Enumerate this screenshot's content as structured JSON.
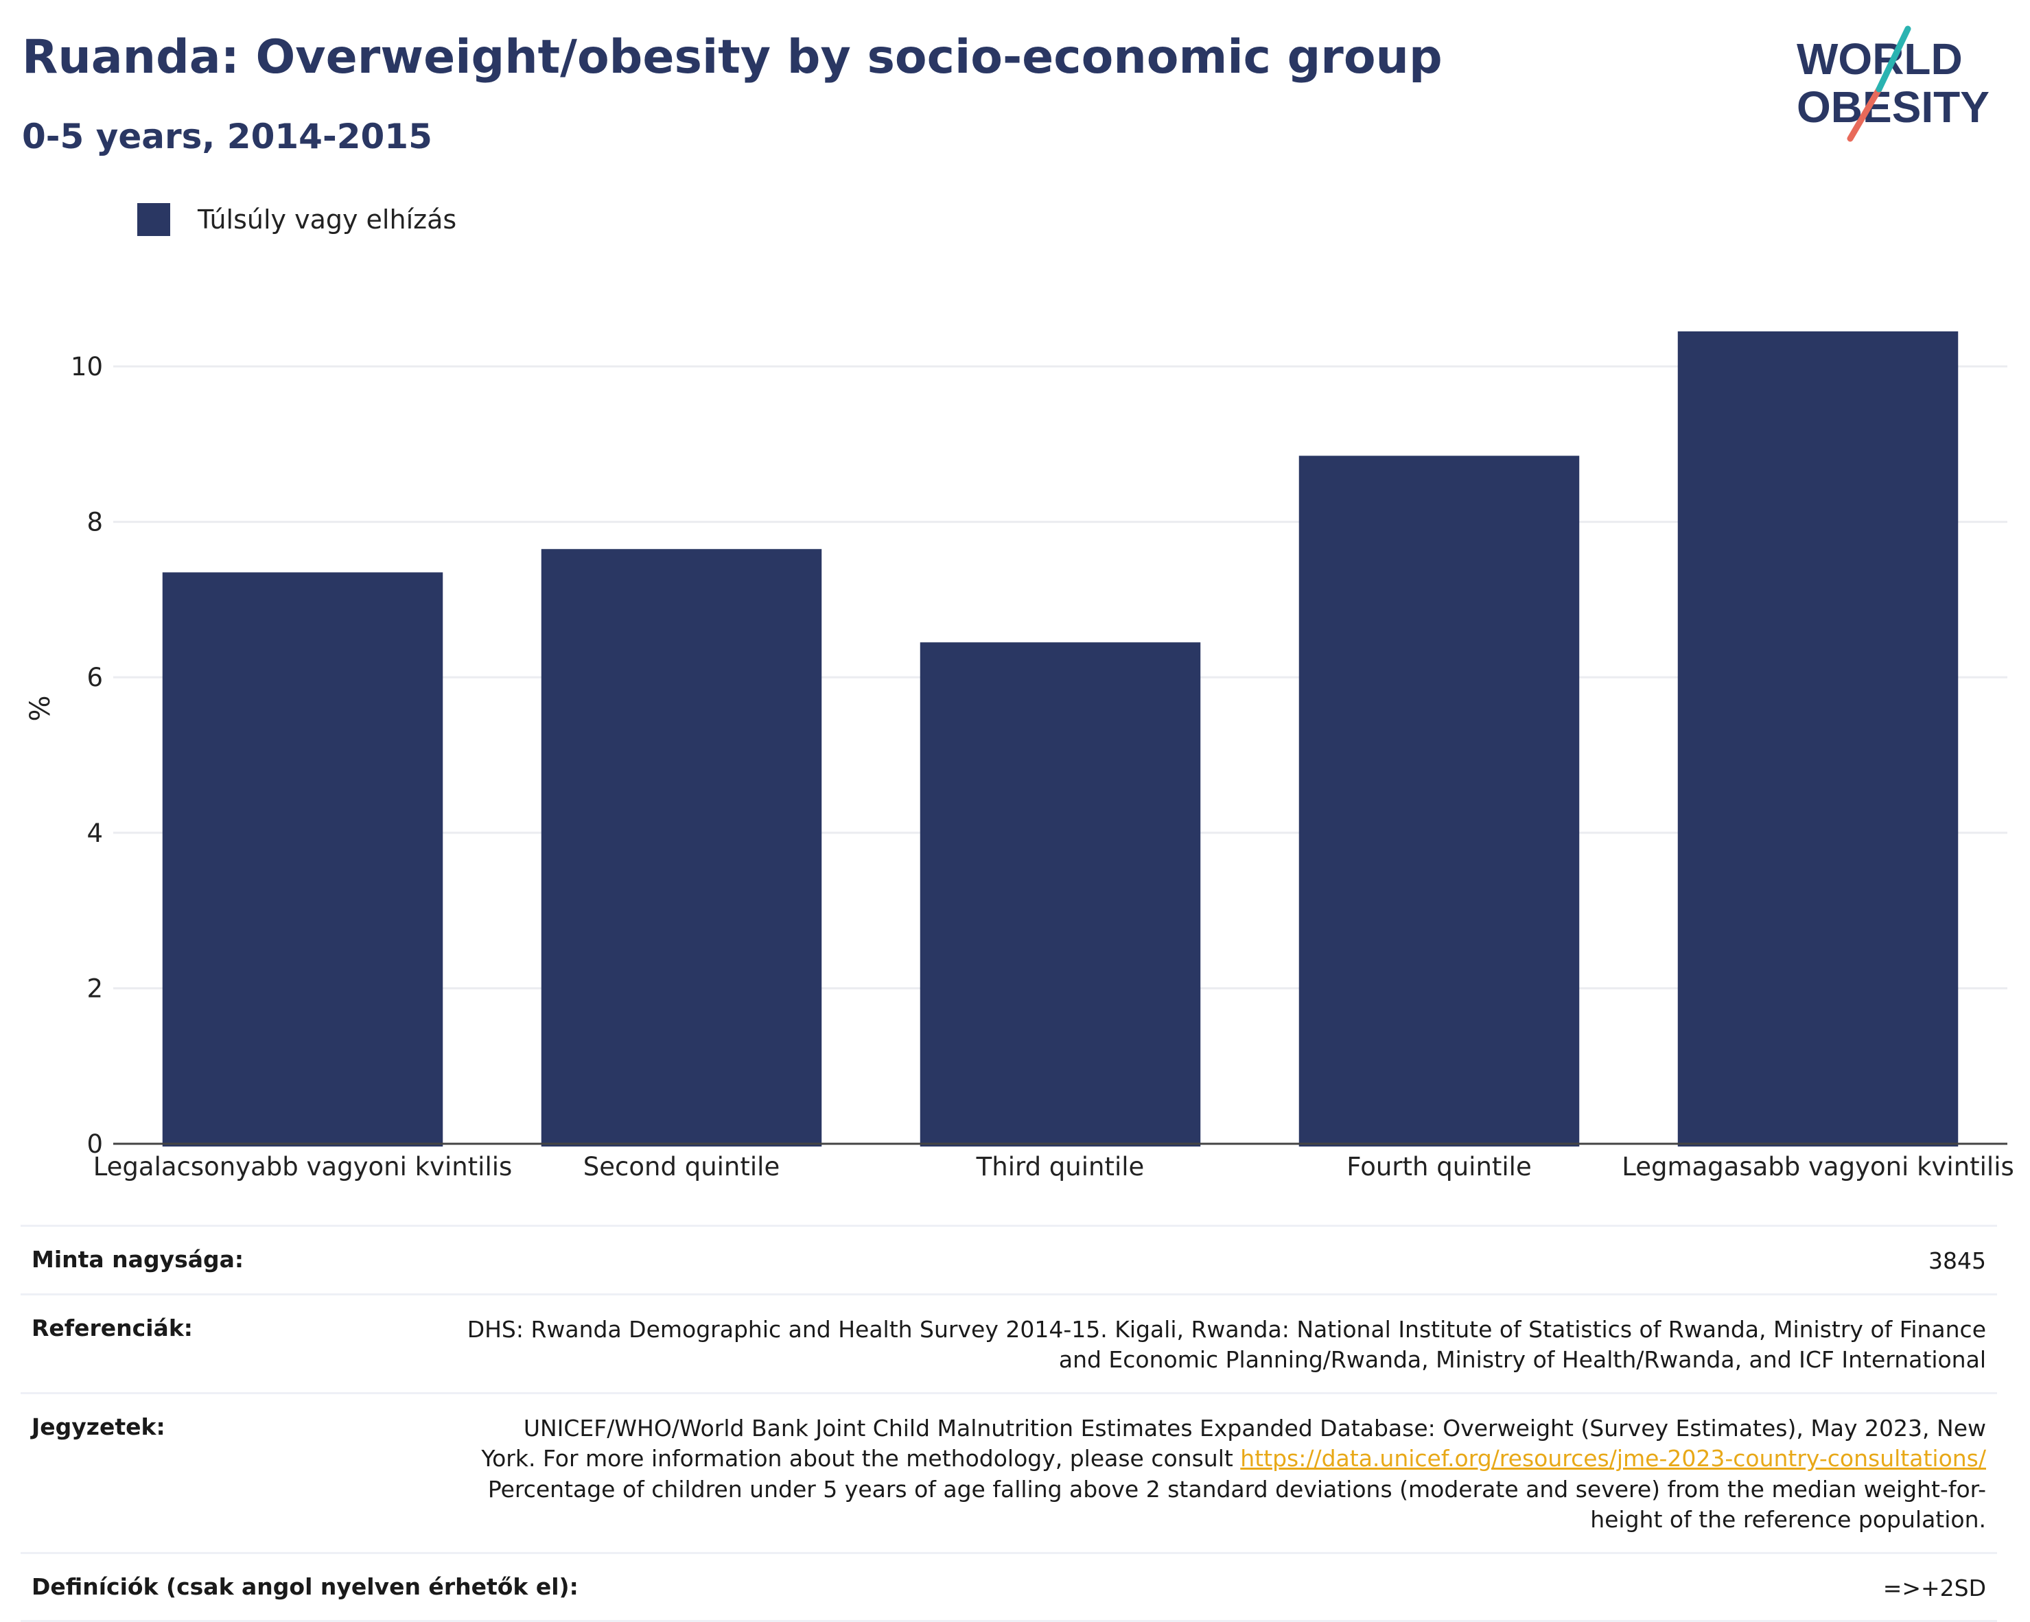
{
  "header": {
    "title": "Ruanda: Overweight/obesity by socio-economic group",
    "subtitle": "0-5 years, 2014-2015"
  },
  "logo": {
    "line1": "WORLD",
    "line2": "OBESITY",
    "colors": {
      "navy": "#2a3763",
      "teal": "#2ab3b1",
      "coral": "#e86a5a"
    }
  },
  "legend": {
    "label": "Túlsúly vagy elhízás",
    "color": "#2a3763"
  },
  "chart_data": {
    "type": "bar",
    "categories": [
      "Legalacsonyabb vagyoni kvintilis",
      "Second quintile",
      "Third quintile",
      "Fourth quintile",
      "Legmagasabb vagyoni kvintilis"
    ],
    "series": [
      {
        "name": "Túlsúly vagy elhízás",
        "values": [
          7.35,
          7.65,
          6.45,
          8.85,
          10.45
        ]
      }
    ],
    "ylabel": "%",
    "ylim": [
      0,
      11.2
    ],
    "yticks": [
      0,
      2,
      4,
      6,
      8,
      10
    ],
    "grid": true,
    "legend_position": "top-left",
    "bar_color": "#2a3763"
  },
  "info": [
    {
      "key": "Minta nagysága:",
      "lines": [
        "3845"
      ]
    },
    {
      "key": "Referenciák:",
      "lines": [
        "DHS: Rwanda Demographic and Health Survey 2014-15. Kigali, Rwanda: National Institute of Statistics of Rwanda, Ministry of Finance",
        "and Economic Planning/Rwanda, Ministry of Health/Rwanda, and ICF International"
      ]
    },
    {
      "key": "Jegyzetek:",
      "lines": [
        "UNICEF/WHO/World Bank Joint Child Malnutrition Estimates Expanded Database: Overweight (Survey Estimates), May 2023, New"
      ],
      "line2_prefix": "York. For more information about the methodology, please consult ",
      "link": "https://data.unicef.org/resources/jme-2023-country-consultations/",
      "lines_after": [
        "Percentage of children under 5 years of age falling above 2 standard deviations (moderate and severe) from the median weight-for-",
        "height of the reference population."
      ]
    },
    {
      "key": "Definíciók (csak angol nyelven érhetők el):",
      "lines": [
        "=>+2SD"
      ]
    }
  ]
}
